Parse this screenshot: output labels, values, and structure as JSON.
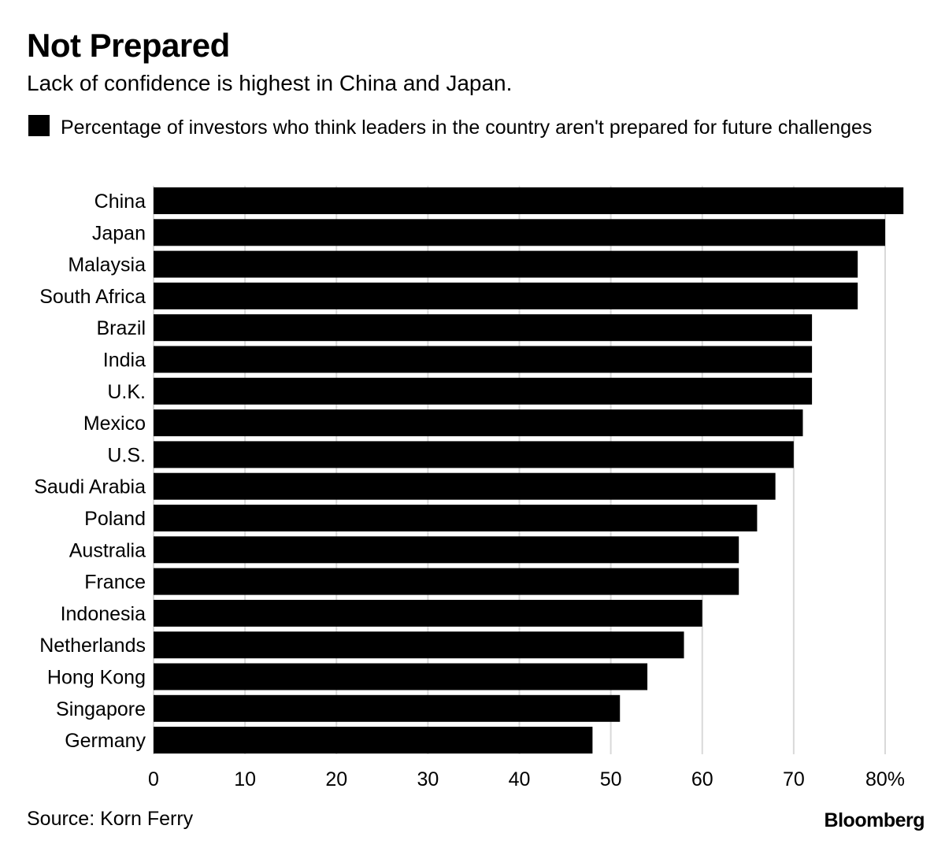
{
  "title": "Not Prepared",
  "subtitle": "Lack of confidence is highest in China and Japan.",
  "legend_label": "Percentage of investors who think leaders in the country aren't prepared for future challenges",
  "source": "Source: Korn Ferry",
  "brand": "Bloomberg",
  "colors": {
    "bar": "#000000",
    "grid": "#d9d9d9",
    "text": "#000000",
    "background": "#ffffff"
  },
  "chart_data": {
    "type": "bar",
    "orientation": "horizontal",
    "categories": [
      "China",
      "Japan",
      "Malaysia",
      "South Africa",
      "Brazil",
      "India",
      "U.K.",
      "Mexico",
      "U.S.",
      "Saudi Arabia",
      "Poland",
      "Australia",
      "France",
      "Indonesia",
      "Netherlands",
      "Hong Kong",
      "Singapore",
      "Germany"
    ],
    "series": [
      {
        "name": "Percentage of investors who think leaders in the country aren't prepared for future challenges",
        "values": [
          82,
          80,
          77,
          77,
          72,
          72,
          72,
          71,
          70,
          68,
          66,
          64,
          64,
          60,
          58,
          54,
          51,
          48
        ]
      }
    ],
    "xlim": [
      0,
      80
    ],
    "xticks": [
      0,
      10,
      20,
      30,
      40,
      50,
      60,
      70,
      80
    ],
    "xtick_labels": [
      "0",
      "10",
      "20",
      "30",
      "40",
      "50",
      "60",
      "70",
      "80%"
    ],
    "grid": true,
    "legend_position": "top-left"
  }
}
